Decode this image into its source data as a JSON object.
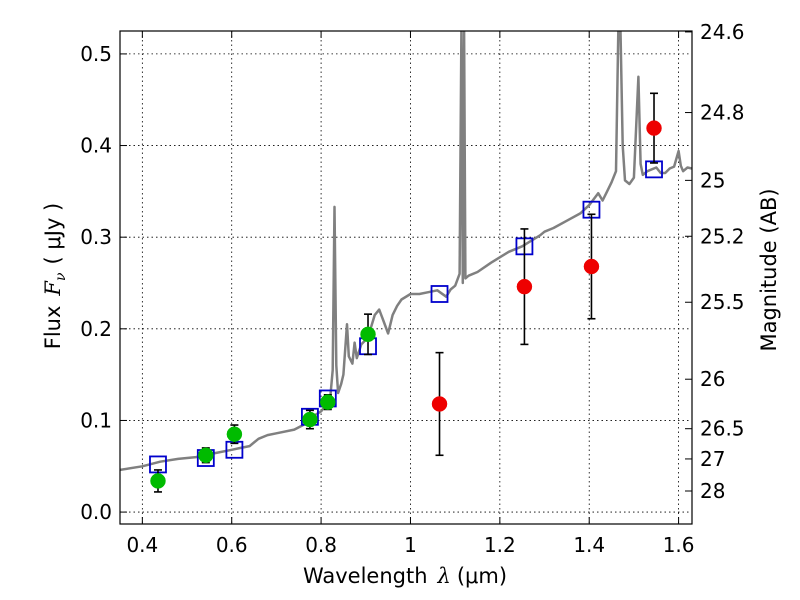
{
  "chart_data": {
    "type": "scatter",
    "xlabel_text": "Wavelength",
    "xlabel_symbol": "λ",
    "xlabel_units": "(μm)",
    "ylabel_text": "Flux",
    "ylabel_symbol": "F",
    "ylabel_sub": "ν",
    "ylabel_units": "( μJy )",
    "y2label": "Magnitude (AB)",
    "xlim": [
      0.35,
      1.63
    ],
    "ylim": [
      -0.013,
      0.525
    ],
    "grid": true,
    "xticks": [
      0.4,
      0.6,
      0.8,
      1.0,
      1.2,
      1.4,
      1.6
    ],
    "xtick_labels": [
      "0.4",
      "0.6",
      "0.8",
      "1",
      "1.2",
      "1.4",
      "1.6"
    ],
    "yticks": [
      0.0,
      0.1,
      0.2,
      0.3,
      0.4,
      0.5
    ],
    "ytick_labels": [
      "0.0",
      "0.1",
      "0.2",
      "0.3",
      "0.4",
      "0.5"
    ],
    "y2ticks": [
      {
        "label": "24.6",
        "flux": 0.524
      },
      {
        "label": "24.8",
        "flux": 0.436
      },
      {
        "label": "25",
        "flux": 0.362
      },
      {
        "label": "25.2",
        "flux": 0.301
      },
      {
        "label": "25.5",
        "flux": 0.229
      },
      {
        "label": "26",
        "flux": 0.145
      },
      {
        "label": "26.5",
        "flux": 0.091
      },
      {
        "label": "27",
        "flux": 0.058
      },
      {
        "label": "28",
        "flux": 0.023
      }
    ],
    "series": [
      {
        "name": "model spectrum",
        "kind": "line",
        "color": "#808080",
        "points": [
          [
            0.35,
            0.046
          ],
          [
            0.4,
            0.05
          ],
          [
            0.44,
            0.055
          ],
          [
            0.48,
            0.058
          ],
          [
            0.52,
            0.06
          ],
          [
            0.56,
            0.064
          ],
          [
            0.6,
            0.068
          ],
          [
            0.62,
            0.07
          ],
          [
            0.64,
            0.072
          ],
          [
            0.66,
            0.08
          ],
          [
            0.68,
            0.084
          ],
          [
            0.7,
            0.086
          ],
          [
            0.74,
            0.09
          ],
          [
            0.76,
            0.095
          ],
          [
            0.78,
            0.104
          ],
          [
            0.8,
            0.11
          ],
          [
            0.82,
            0.122
          ],
          [
            0.826,
            0.155
          ],
          [
            0.83,
            0.333
          ],
          [
            0.834,
            0.16
          ],
          [
            0.838,
            0.13
          ],
          [
            0.845,
            0.14
          ],
          [
            0.85,
            0.15
          ],
          [
            0.858,
            0.205
          ],
          [
            0.862,
            0.17
          ],
          [
            0.87,
            0.162
          ],
          [
            0.875,
            0.185
          ],
          [
            0.88,
            0.168
          ],
          [
            0.89,
            0.183
          ],
          [
            0.9,
            0.188
          ],
          [
            0.91,
            0.199
          ],
          [
            0.92,
            0.215
          ],
          [
            0.93,
            0.221
          ],
          [
            0.94,
            0.208
          ],
          [
            0.95,
            0.195
          ],
          [
            0.955,
            0.205
          ],
          [
            0.96,
            0.215
          ],
          [
            0.97,
            0.225
          ],
          [
            0.98,
            0.232
          ],
          [
            1.0,
            0.238
          ],
          [
            1.02,
            0.238
          ],
          [
            1.04,
            0.24
          ],
          [
            1.06,
            0.242
          ],
          [
            1.08,
            0.235
          ],
          [
            1.09,
            0.243
          ],
          [
            1.1,
            0.247
          ],
          [
            1.11,
            0.26
          ],
          [
            1.114,
            0.525
          ],
          [
            1.117,
            0.25
          ],
          [
            1.12,
            0.525
          ],
          [
            1.123,
            0.255
          ],
          [
            1.13,
            0.258
          ],
          [
            1.15,
            0.262
          ],
          [
            1.18,
            0.272
          ],
          [
            1.2,
            0.278
          ],
          [
            1.22,
            0.284
          ],
          [
            1.25,
            0.29
          ],
          [
            1.27,
            0.296
          ],
          [
            1.29,
            0.302
          ],
          [
            1.3,
            0.306
          ],
          [
            1.32,
            0.31
          ],
          [
            1.35,
            0.318
          ],
          [
            1.38,
            0.326
          ],
          [
            1.4,
            0.335
          ],
          [
            1.42,
            0.348
          ],
          [
            1.43,
            0.34
          ],
          [
            1.44,
            0.35
          ],
          [
            1.45,
            0.36
          ],
          [
            1.46,
            0.372
          ],
          [
            1.465,
            0.525
          ],
          [
            1.47,
            0.525
          ],
          [
            1.475,
            0.4
          ],
          [
            1.48,
            0.362
          ],
          [
            1.49,
            0.358
          ],
          [
            1.5,
            0.365
          ],
          [
            1.51,
            0.475
          ],
          [
            1.515,
            0.38
          ],
          [
            1.52,
            0.368
          ],
          [
            1.53,
            0.372
          ],
          [
            1.55,
            0.376
          ],
          [
            1.56,
            0.37
          ],
          [
            1.57,
            0.37
          ],
          [
            1.58,
            0.375
          ],
          [
            1.59,
            0.377
          ],
          [
            1.6,
            0.394
          ],
          [
            1.605,
            0.378
          ],
          [
            1.61,
            0.372
          ],
          [
            1.62,
            0.376
          ],
          [
            1.63,
            0.375
          ]
        ]
      },
      {
        "name": "model band fluxes",
        "kind": "open-square",
        "color": "#0000cc",
        "points": [
          [
            0.435,
            0.052
          ],
          [
            0.542,
            0.059
          ],
          [
            0.606,
            0.068
          ],
          [
            0.775,
            0.104
          ],
          [
            0.815,
            0.124
          ],
          [
            0.905,
            0.181
          ],
          [
            1.065,
            0.238
          ],
          [
            1.255,
            0.29
          ],
          [
            1.405,
            0.33
          ],
          [
            1.545,
            0.374
          ]
        ]
      },
      {
        "name": "observed (green)",
        "kind": "filled-circle",
        "color": "#00bb00",
        "points": [
          {
            "x": 0.435,
            "y": 0.034,
            "err": 0.012
          },
          {
            "x": 0.542,
            "y": 0.062,
            "err": 0.008
          },
          {
            "x": 0.606,
            "y": 0.085,
            "err": 0.01
          },
          {
            "x": 0.775,
            "y": 0.101,
            "err": 0.01
          },
          {
            "x": 0.815,
            "y": 0.12,
            "err": 0.008
          },
          {
            "x": 0.905,
            "y": 0.194,
            "err": 0.022
          }
        ]
      },
      {
        "name": "observed (red)",
        "kind": "filled-circle",
        "color": "#ee0000",
        "points": [
          {
            "x": 1.065,
            "y": 0.118,
            "err": 0.056
          },
          {
            "x": 1.255,
            "y": 0.246,
            "err": 0.063
          },
          {
            "x": 1.405,
            "y": 0.268,
            "err": 0.057
          },
          {
            "x": 1.545,
            "y": 0.419,
            "err": 0.038
          }
        ]
      }
    ]
  }
}
